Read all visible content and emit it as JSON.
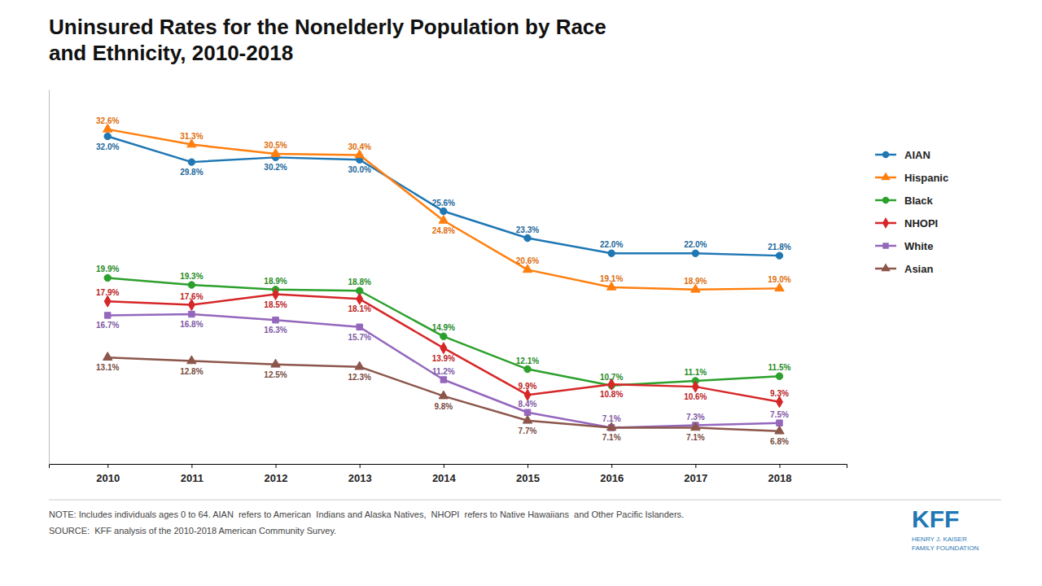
{
  "chart_data": {
    "type": "line",
    "title": "Uninsured Rates for the Nonelderly Population by Race\nand Ethnicity, 2010-2018",
    "x": [
      2010,
      2011,
      2012,
      2013,
      2014,
      2015,
      2016,
      2017,
      2018
    ],
    "xlim": [
      2009.3,
      2018.8
    ],
    "xticks": [
      2010,
      2011,
      2012,
      2013,
      2014,
      2015,
      2016,
      2017,
      2018
    ],
    "ylim": [
      4,
      36
    ],
    "tick_labels": "x",
    "grid": false,
    "legend": "right",
    "data_labels": true,
    "series": [
      {
        "name": "AIAN",
        "marker": "circle",
        "line_style": "solid",
        "values": [
          32.0,
          29.8,
          30.2,
          30.0,
          25.6,
          23.3,
          22.0,
          22.0,
          21.8
        ],
        "value_labels": [
          "32.0%",
          "29.8%",
          "30.2%",
          "30.0%",
          "25.6%",
          "23.3%",
          "22.0%",
          "22.0%",
          "21.8%"
        ]
      },
      {
        "name": "Hispanic",
        "marker": "triangle",
        "line_style": "solid",
        "values": [
          32.6,
          31.3,
          30.5,
          30.4,
          24.8,
          20.6,
          19.1,
          18.9,
          19.0
        ],
        "value_labels": [
          "32.6%",
          "31.3%",
          "30.5%",
          "30.4%",
          "24.8%",
          "20.6%",
          "19.1%",
          "18.9%",
          "19.0%"
        ]
      },
      {
        "name": "Black",
        "marker": "circle",
        "line_style": "solid",
        "values": [
          19.9,
          19.3,
          18.9,
          18.8,
          14.9,
          12.1,
          10.7,
          11.1,
          11.5
        ],
        "value_labels": [
          "19.9%",
          "19.3%",
          "18.9%",
          "18.8%",
          "14.9%",
          "12.1%",
          "10.7%",
          "11.1%",
          "11.5%"
        ]
      },
      {
        "name": "NHOPI",
        "marker": "diamond",
        "line_style": "solid",
        "values": [
          17.9,
          17.6,
          18.5,
          18.1,
          13.9,
          9.9,
          10.8,
          10.6,
          9.3
        ],
        "value_labels": [
          "17.9%",
          "17.6%",
          "18.5%",
          "18.1%",
          "13.9%",
          "9.9%",
          "10.8%",
          "10.6%",
          "9.3%"
        ]
      },
      {
        "name": "White",
        "marker": "square",
        "line_style": "solid",
        "values": [
          16.7,
          16.8,
          16.3,
          15.7,
          11.2,
          8.4,
          7.1,
          7.3,
          7.5
        ],
        "value_labels": [
          "16.7%",
          "16.8%",
          "16.3%",
          "15.7%",
          "11.2%",
          "8.4%",
          "7.1%",
          "7.3%",
          "7.5%"
        ]
      },
      {
        "name": "Asian",
        "marker": "triangle",
        "line_style": "solid",
        "values": [
          13.1,
          12.8,
          12.5,
          12.3,
          9.8,
          7.7,
          7.1,
          7.1,
          6.8
        ],
        "value_labels": [
          "13.1%",
          "12.8%",
          "12.5%",
          "12.3%",
          "9.8%",
          "7.7%",
          "7.1%",
          "7.1%",
          "6.8%"
        ]
      }
    ],
    "annotations": [
      "NOTE: Includes individuals ages 0 to 64. AIAN  refers to American  Indians and Alaska Natives,  NHOPI  refers to Native Hawaiians  and Other Pacific Islanders.",
      "SOURCE:  KFF analysis of the 2010-2018 American Community Survey.",
      "KFF",
      "HENRY J. KAISER\nFAMILY FOUNDATION"
    ]
  }
}
